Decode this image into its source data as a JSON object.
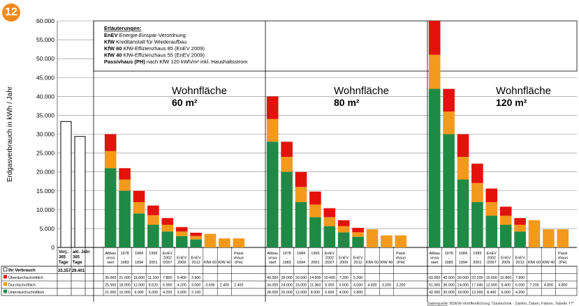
{
  "badge": "12",
  "colors": {
    "ueber": "#e3120b",
    "durch": "#f39a1c",
    "unter": "#1f8a45",
    "fill_only": "#f39a1c",
    "grid": "#888888"
  },
  "legend_box": {
    "title": "Erläuterungen:",
    "lines": [
      {
        "bold": "EnEV",
        "text": " Energie-Einspar-Verordnung"
      },
      {
        "bold": "KfW",
        "text": " Kreditanstalt für Wiederaufbau"
      },
      {
        "bold": "KfW 60",
        "text": " KfW-Effizienzhaus 85 (EnEV 2009)"
      },
      {
        "bold": "KfW 40",
        "text": " KfW-Effizienzhaus 55 (EnEV 2009)"
      },
      {
        "bold": "Passivhaus (PH)",
        "text": " nach KfW 120 kWh/m² inkl. Haushaltsstrom"
      }
    ]
  },
  "source": {
    "label": "Datenquelle",
    "text": ": BDEW-Veröffentlichung \"Gastechnik - Zahlen, Daten, Fakten, Tabelle T7\""
  },
  "chart_data": {
    "type": "bar",
    "ylabel": "Erdgasverbrauch in kWh / Jahr",
    "ylim": [
      0,
      60000
    ],
    "yticks": [
      "0",
      "5.000",
      "10.000",
      "15.000",
      "20.000",
      "25.000",
      "30.000",
      "35.000",
      "40.000",
      "45.000",
      "50.000",
      "55.000",
      "60.000"
    ],
    "ytick_values": [
      0,
      5000,
      10000,
      15000,
      20000,
      25000,
      30000,
      35000,
      40000,
      45000,
      50000,
      55000,
      60000
    ],
    "reference": {
      "row_label": "Ihr Verbrauch",
      "bars": [
        {
          "label": "Vorj.: 365 Tage",
          "value": 33357,
          "value_text": "33.357"
        },
        {
          "label": "akt. Jahr 365 Tage",
          "value": 29401,
          "value_text": "29.401"
        }
      ]
    },
    "series_labels": [
      "Überdurchschnittlich",
      "Durchschnittlich",
      "Unterdurchschnittlich"
    ],
    "groups": [
      {
        "title": "Wohnfläche",
        "subtitle": "60 m²",
        "categories": [
          "Altbau unsa niert",
          "1978 - 1983",
          "1984 - 1994",
          "1995 - 2001",
          "EnEV 2002 /2007",
          "EnEV 2009",
          "EnEV 2012",
          "KfW 60",
          "KfW 40",
          "Passi vhaus (PH)"
        ],
        "ueber": [
          30000,
          21000,
          15000,
          11100,
          7800,
          5400,
          3900,
          null,
          null,
          null
        ],
        "durch": [
          25500,
          18000,
          12000,
          8520,
          6000,
          4200,
          3000,
          3600,
          2400,
          2400
        ],
        "unter": [
          21000,
          15000,
          9000,
          6000,
          4200,
          3000,
          2100,
          null,
          null,
          null
        ],
        "ueber_text": [
          "30.000",
          "21.000",
          "15.000",
          "11.100",
          "7.800",
          "5.400",
          "3.900",
          "",
          "",
          ""
        ],
        "durch_text": [
          "25.500",
          "18.000",
          "12.000",
          "8.520",
          "6.000",
          "4.200",
          "3.000",
          "3.600",
          "2.400",
          "2.400"
        ],
        "unter_text": [
          "21.000",
          "15.000",
          "9.000",
          "6.000",
          "4.200",
          "3.000",
          "2.100",
          "",
          "",
          ""
        ]
      },
      {
        "title": "Wohnfläche",
        "subtitle": "80 m²",
        "categories": [
          "Altbau unsa niert",
          "1978 - 1983",
          "1984 - 1994",
          "1995 - 2001",
          "EnEV 2002 /2007",
          "EnEV 2009",
          "EnEV 2012",
          "KfW 60",
          "KfW 40",
          "Passi vhaus (PH)"
        ],
        "ueber": [
          40000,
          28000,
          20000,
          14800,
          10400,
          7200,
          5200,
          null,
          null,
          null
        ],
        "durch": [
          34000,
          24000,
          16000,
          11360,
          8000,
          5600,
          4000,
          4800,
          3200,
          3200
        ],
        "unter": [
          28000,
          20000,
          12000,
          8000,
          5600,
          4000,
          2800,
          null,
          null,
          null
        ],
        "ueber_text": [
          "40.000",
          "28.000",
          "20.000",
          "14.800",
          "10.400",
          "7.200",
          "5.200",
          "",
          "",
          ""
        ],
        "durch_text": [
          "34.000",
          "24.000",
          "16.000",
          "11.360",
          "8.000",
          "5.600",
          "4.000",
          "4.800",
          "3.200",
          "3.200"
        ],
        "unter_text": [
          "28.000",
          "20.000",
          "12.000",
          "8.000",
          "5.600",
          "4.000",
          "2.800",
          "",
          "",
          ""
        ]
      },
      {
        "title": "Wohnfläche",
        "subtitle": "120 m²",
        "categories": [
          "Altbau unsa niert",
          "1978 - 1983",
          "1984 - 1994",
          "1995 - 2001",
          "EnEV 2002 /2007",
          "EnEV 2009",
          "EnEV 2012",
          "KfW 60",
          "KfW 40",
          "Passi vhaus (PH)"
        ],
        "ueber": [
          60000,
          42000,
          30000,
          22200,
          15600,
          10800,
          7800,
          null,
          null,
          null
        ],
        "durch": [
          51000,
          36000,
          24000,
          17040,
          12000,
          8400,
          6000,
          7200,
          4800,
          4800
        ],
        "unter": [
          42000,
          30000,
          18000,
          12000,
          8400,
          6000,
          4200,
          null,
          null,
          null
        ],
        "ueber_text": [
          "60.000",
          "42.000",
          "30.000",
          "22.200",
          "15.600",
          "10.800",
          "7.800",
          "",
          "",
          ""
        ],
        "durch_text": [
          "51.000",
          "36.000",
          "24.000",
          "17.040",
          "12.000",
          "8.400",
          "6.000",
          "7.200",
          "4.800",
          "4.800"
        ],
        "unter_text": [
          "42.000",
          "30.000",
          "18.000",
          "12.000",
          "8.400",
          "6.000",
          "4.200",
          "",
          "",
          ""
        ]
      }
    ],
    "grid": true
  }
}
